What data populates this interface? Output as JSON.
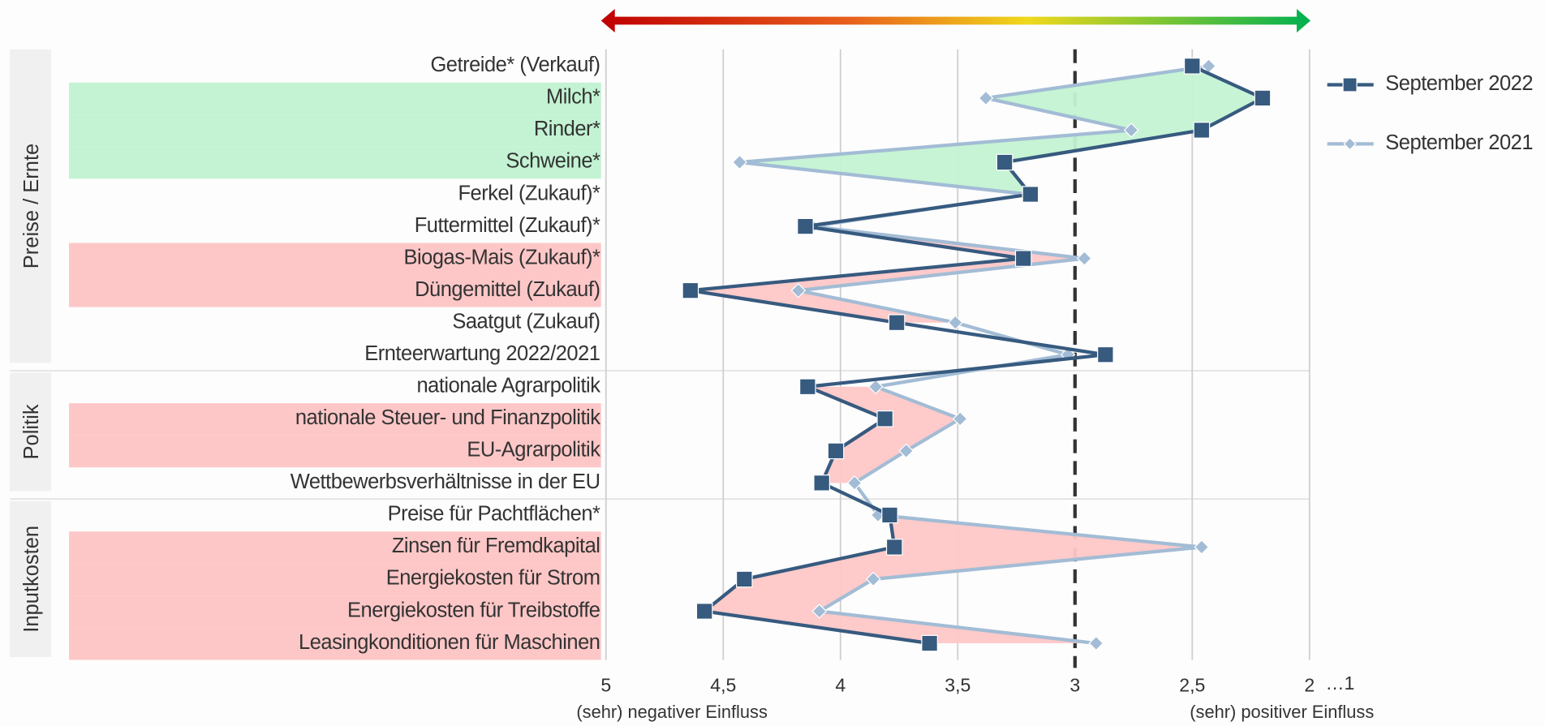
{
  "chart_data": {
    "type": "line",
    "orientation": "horizontal",
    "groups": [
      {
        "name": "Preise / Ernte",
        "categories": [
          "Getreide* (Verkauf)",
          "Milch*",
          "Rinder*",
          "Schweine*",
          "Ferkel (Zukauf)*",
          "Futtermittel (Zukauf)*",
          "Biogas-Mais (Zukauf)*",
          "Düngemittel (Zukauf)",
          "Saatgut (Zukauf)",
          "Ernteerwartung 2022/2021"
        ]
      },
      {
        "name": "Politik",
        "categories": [
          "nationale Agrarpolitik",
          "nationale Steuer- und Finanzpolitik",
          "EU-Agrarpolitik",
          "Wettbewerbsverhältnisse in der EU"
        ]
      },
      {
        "name": "Inputkosten",
        "categories": [
          "Preise für Pachtflächen*",
          "Zinsen für Fremdkapital",
          "Energiekosten für Strom",
          "Energiekosten für Treibstoffe",
          "Leasingkonditionen für Maschinen"
        ]
      }
    ],
    "row_highlight": [
      null,
      "#c3f3d3",
      "#c3f3d3",
      "#c3f3d3",
      null,
      null,
      "#fec7c7",
      "#fec7c7",
      null,
      null,
      null,
      "#fec7c7",
      "#fec7c7",
      null,
      null,
      "#fec7c7",
      "#fec7c7",
      "#fec7c7",
      "#fec7c7"
    ],
    "series": [
      {
        "name": "September 2022",
        "color": "#375a7f",
        "marker": "square",
        "values": [
          2.5,
          2.2,
          2.46,
          3.3,
          3.19,
          4.15,
          3.22,
          4.64,
          3.76,
          2.87,
          4.14,
          3.81,
          4.02,
          4.08,
          3.79,
          3.77,
          4.41,
          4.58,
          3.62
        ]
      },
      {
        "name": "September 2021",
        "color": "#a3bcd5",
        "marker": "diamond",
        "values": [
          2.43,
          3.38,
          2.76,
          4.43,
          3.2,
          4.12,
          2.96,
          4.18,
          3.51,
          3.03,
          3.85,
          3.49,
          3.72,
          3.94,
          3.84,
          2.46,
          3.86,
          4.09,
          2.91
        ]
      }
    ],
    "xlim": [
      5,
      2
    ],
    "xticks": [
      5,
      {
        "value": 4.5,
        "label": "4,5"
      },
      4,
      {
        "value": 3.5,
        "label": "3,5"
      },
      3,
      {
        "value": 2.5,
        "label": "2,5"
      },
      2
    ],
    "extra_tick_label": "…1",
    "reference_line": 3,
    "grid": true,
    "legend_position": "top-right",
    "x_annotations": {
      "left": "(sehr) negativer Einfluss",
      "right": "(sehr) positiver Einfluss"
    }
  }
}
